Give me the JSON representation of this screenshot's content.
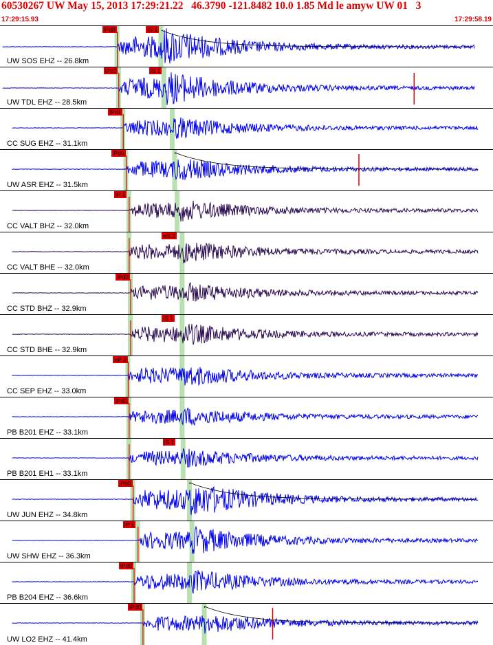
{
  "header": {
    "title": "60530267 UW May 15, 2013 17:29:21.22   46.3790 -121.8482 10.0 1.85 Md le amyw UW 01   3",
    "time_start": "17:29:15.93",
    "time_end": "17:29:58.19"
  },
  "colors": {
    "trace_blue": "#0000ee",
    "trace_dark": "#2a0a50",
    "pick_red": "#e00000",
    "highlight_green": "#b8e0b0"
  },
  "traces": [
    {
      "label": "UW SOS EHZ -- 26.8km",
      "color": "blue",
      "picks": [
        "iPd0",
        "iS 1"
      ],
      "p": 0.238,
      "s": 0.327,
      "amp": 1.0,
      "tail_flat": true
    },
    {
      "label": "UW TDL EHZ -- 28.5km",
      "color": "blue",
      "picks": [
        "iPc0",
        "iS 1"
      ],
      "p": 0.241,
      "s": 0.333,
      "amp": 0.9,
      "spike": 0.84
    },
    {
      "label": "CC SUG EHZ -- 31.1km",
      "color": "blue",
      "picks": [
        "iPd1"
      ],
      "p": 0.25,
      "s": 0.35,
      "amp": 0.55
    },
    {
      "label": "UW ASR EHZ -- 31.5km",
      "color": "blue",
      "picks": [
        "iPd0"
      ],
      "p": 0.256,
      "s": 0.355,
      "amp": 0.6,
      "spike": 0.728
    },
    {
      "label": "CC VALT BHZ -- 32.0km",
      "color": "dark",
      "picks": [
        "iP 1"
      ],
      "p": 0.262,
      "s": 0.36,
      "amp": 0.55
    },
    {
      "label": "CC VALT BHE -- 32.0km",
      "color": "dark",
      "picks": [
        "eS 2"
      ],
      "p": 0.262,
      "s": 0.37,
      "amp": 0.55
    },
    {
      "label": "CC STD BHZ -- 32.9km",
      "color": "dark",
      "picks": [
        "iPd0"
      ],
      "p": 0.265,
      "s": 0.37,
      "amp": 0.5
    },
    {
      "label": "CC STD BHE -- 32.9km",
      "color": "dark",
      "picks": [
        "iS 1"
      ],
      "p": 0.265,
      "s": 0.37,
      "amp": 0.55
    },
    {
      "label": "CC SEP EHZ -- 33.0km",
      "color": "blue",
      "picks": [
        "eP 2"
      ],
      "p": 0.26,
      "s": 0.37,
      "amp": 0.55
    },
    {
      "label": "PB B201 EHZ -- 33.1km",
      "color": "blue",
      "picks": [
        "iPd0"
      ],
      "p": 0.262,
      "s": 0.37,
      "amp": 0.45
    },
    {
      "label": "PB B201 EH1 -- 33.1km",
      "color": "blue",
      "picks": [
        "iS 1"
      ],
      "p": 0.262,
      "s": 0.372,
      "amp": 0.45
    },
    {
      "label": "UW JUN EHZ -- 34.8km",
      "color": "blue",
      "picks": [
        "iPd0"
      ],
      "p": 0.27,
      "s": 0.385,
      "amp": 0.9,
      "tail_flat": true
    },
    {
      "label": "UW SHW EHZ -- 36.3km",
      "color": "blue",
      "picks": [
        "iP 1"
      ],
      "p": 0.28,
      "s": 0.39,
      "amp": 0.7
    },
    {
      "label": "PB B204 EHZ -- 36.6km",
      "color": "blue",
      "picks": [
        "iPd0"
      ],
      "p": 0.272,
      "s": 0.385,
      "amp": 0.6
    },
    {
      "label": "UW LO2 EHZ -- 41.4km",
      "color": "blue",
      "picks": [
        "iPd0"
      ],
      "p": 0.29,
      "s": 0.415,
      "amp": 0.5,
      "spike": 0.553
    }
  ]
}
